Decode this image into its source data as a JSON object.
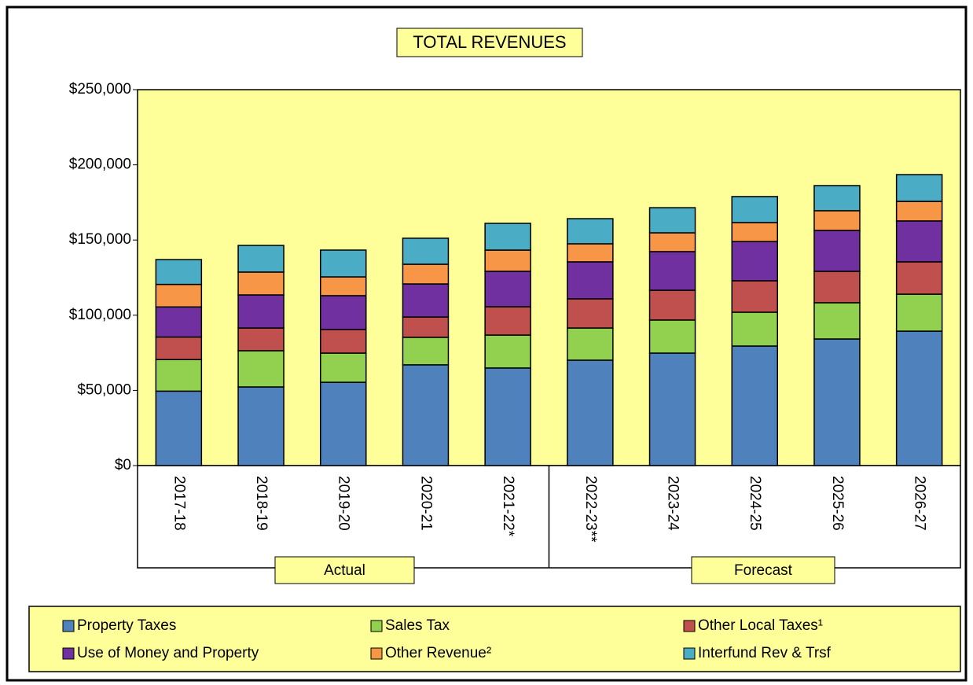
{
  "chart_data": {
    "type": "stacked_bar",
    "title": "TOTAL REVENUES",
    "categories": [
      "2017-18",
      "2018-19",
      "2019-20",
      "2020-21",
      "2021-22*",
      "2022-23**",
      "2023-24",
      "2024-25",
      "2025-26",
      "2026-27"
    ],
    "group_labels": [
      "Actual",
      "Forecast"
    ],
    "series": [
      {
        "name": "Property Taxes",
        "color": "#4f81bd",
        "values": [
          49500,
          52300,
          55400,
          67000,
          64900,
          70100,
          74800,
          79500,
          84200,
          89400
        ]
      },
      {
        "name": "Sales Tax",
        "color": "#92d050",
        "values": [
          21000,
          24100,
          19400,
          18300,
          21900,
          21400,
          22000,
          22500,
          24100,
          24600
        ]
      },
      {
        "name": "Other Local Taxes¹",
        "color": "#c0504d",
        "values": [
          15000,
          15100,
          15700,
          13500,
          18800,
          19400,
          19800,
          20900,
          20900,
          21500
        ]
      },
      {
        "name": "Use of Money and Property",
        "color": "#7030a0",
        "values": [
          20000,
          22000,
          22500,
          22000,
          23600,
          24600,
          25700,
          26100,
          27200,
          27200
        ]
      },
      {
        "name": "Other Revenue²",
        "color": "#f79646",
        "values": [
          15000,
          15200,
          12500,
          13100,
          14100,
          12000,
          12500,
          12600,
          13100,
          13000
        ]
      },
      {
        "name": "Interfund Rev & Trsf",
        "color": "#4bacc6",
        "values": [
          16500,
          17700,
          17800,
          17300,
          17800,
          16700,
          16700,
          17300,
          16700,
          17800
        ]
      }
    ],
    "ylim": [
      0,
      250000
    ],
    "yticks": [
      {
        "value": 0,
        "label": "$0"
      },
      {
        "value": 50000,
        "label": "$50,000"
      },
      {
        "value": 100000,
        "label": "$100,000"
      },
      {
        "value": 150000,
        "label": "$150,000"
      },
      {
        "value": 200000,
        "label": "$200,000"
      },
      {
        "value": 250000,
        "label": "$250,000"
      }
    ],
    "plot_background": "#ffff99"
  }
}
